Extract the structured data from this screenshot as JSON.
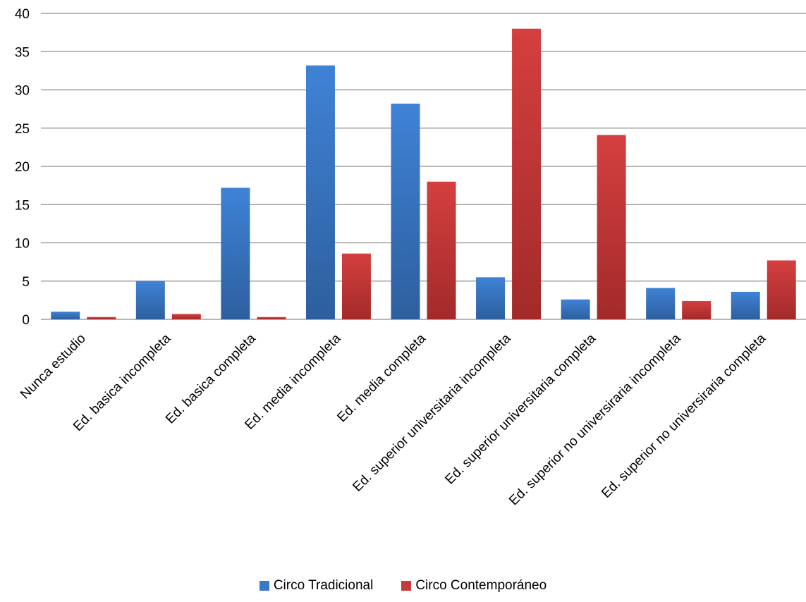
{
  "chart_data": {
    "type": "bar",
    "title": "",
    "xlabel": "",
    "ylabel": "",
    "ylim": [
      0,
      40
    ],
    "yticks": [
      0,
      5,
      10,
      15,
      20,
      25,
      30,
      35,
      40
    ],
    "grid": true,
    "legend_position": "bottom",
    "categories": [
      "Nunca estudio",
      "Ed. basica incompleta",
      "Ed. basica completa",
      "Ed. media incompleta",
      "Ed. media completa",
      "Ed. superior universitaria incompleta",
      "Ed. superior universitaria completa",
      "Ed. superior no universiraria incompleta",
      "Ed. superior no universiraria completa"
    ],
    "series": [
      {
        "name": "Circo Tradicional",
        "color": "#3A79C8",
        "values": [
          1.0,
          5.0,
          17.2,
          33.2,
          28.2,
          5.5,
          2.6,
          4.1,
          3.6
        ]
      },
      {
        "name": "Circo Contemporáneo",
        "color": "#C83A3A",
        "values": [
          0.3,
          0.7,
          0.3,
          8.6,
          18.0,
          38.0,
          24.1,
          2.4,
          7.7
        ]
      }
    ]
  }
}
